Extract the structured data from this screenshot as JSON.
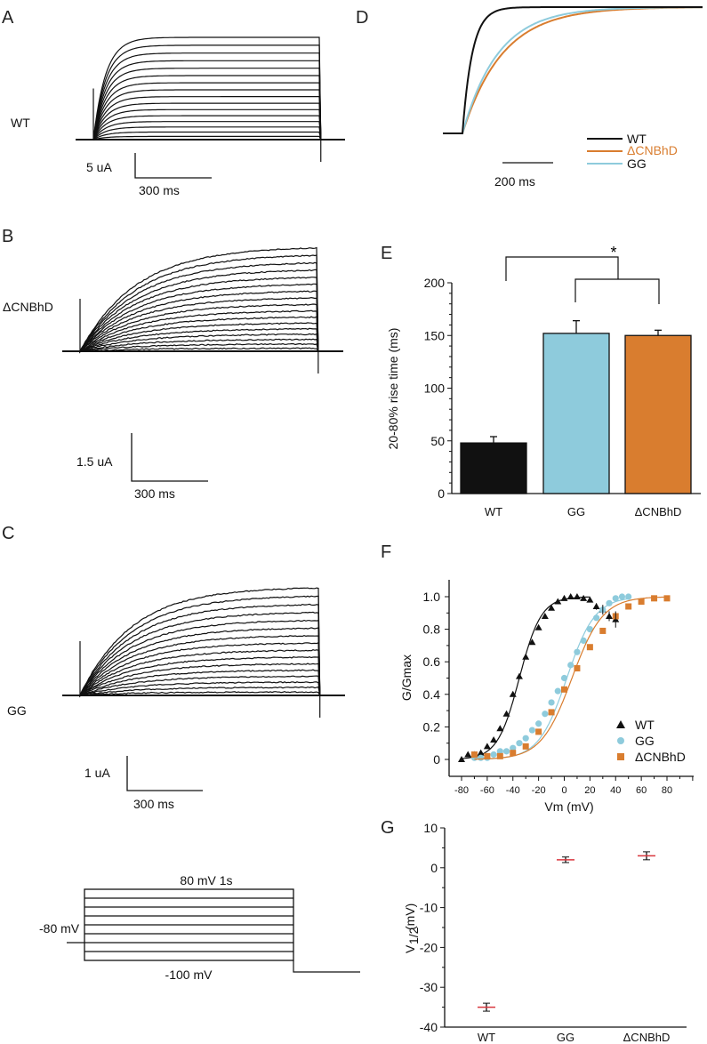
{
  "panels": {
    "A": {
      "letter": "A",
      "construct": "WT",
      "scale_current": "5 uA",
      "scale_time": "300 ms"
    },
    "B": {
      "letter": "B",
      "construct": "ΔCNBhD",
      "scale_current": "1.5 uA",
      "scale_time": "300 ms"
    },
    "C": {
      "letter": "C",
      "construct": "GG",
      "scale_current": "1 uA",
      "scale_time": "300 ms"
    },
    "protocol": {
      "top_label": "80 mV 1s",
      "holding_label": "-80 mV",
      "bottom_label": "-100 mV"
    },
    "D": {
      "letter": "D",
      "scale_time": "200 ms",
      "legend": [
        "WT",
        "ΔCNBhD",
        "GG"
      ]
    },
    "E": {
      "letter": "E"
    },
    "F": {
      "letter": "F"
    },
    "G": {
      "letter": "G"
    }
  },
  "colors": {
    "WT": "#111111",
    "GG": "#8ecbdc",
    "dCNBhD": "#d97d2f",
    "mean_line": "#d9363e"
  },
  "chart_data": [
    {
      "panel": "E",
      "type": "bar",
      "categories": [
        "WT",
        "GG",
        "ΔCNBhD"
      ],
      "values": [
        48,
        152,
        150
      ],
      "errors": [
        6,
        12,
        5
      ],
      "ylabel": "20-80% rise time (ms)",
      "ylim": [
        0,
        200
      ],
      "yticks": [
        "0",
        "50",
        "100",
        "150",
        "200"
      ],
      "significance": "*"
    },
    {
      "panel": "F",
      "type": "scatter",
      "xlabel": "Vm (mV)",
      "ylabel": "G/Gmax",
      "xlim": [
        -90,
        100
      ],
      "ylim": [
        0,
        1.1
      ],
      "xticks": [
        "-80",
        "-60",
        "-40",
        "-20",
        "0",
        "20",
        "40",
        "60",
        "80"
      ],
      "yticks": [
        "0",
        "0.2",
        "0.4",
        "0.6",
        "0.8",
        "1.0"
      ],
      "legend_position": "bottom-right",
      "series": [
        {
          "name": "WT",
          "marker": "triangle",
          "x": [
            -80,
            -75,
            -70,
            -65,
            -60,
            -55,
            -50,
            -45,
            -40,
            -35,
            -30,
            -25,
            -20,
            -15,
            -10,
            -5,
            0,
            5,
            10,
            15,
            20,
            25,
            30,
            35,
            40
          ],
          "y": [
            0,
            0.03,
            0.03,
            0.04,
            0.08,
            0.12,
            0.19,
            0.28,
            0.4,
            0.51,
            0.63,
            0.72,
            0.81,
            0.88,
            0.93,
            0.97,
            0.99,
            1.0,
            1.0,
            0.99,
            0.98,
            0.94,
            0.92,
            0.88,
            0.86
          ]
        },
        {
          "name": "GG",
          "marker": "circle",
          "x": [
            -70,
            -65,
            -60,
            -55,
            -50,
            -45,
            -40,
            -35,
            -30,
            -25,
            -20,
            -15,
            -10,
            -5,
            0,
            5,
            10,
            15,
            20,
            25,
            30,
            35,
            40,
            45,
            50
          ],
          "y": [
            0.01,
            0.01,
            0.01,
            0.03,
            0.05,
            0.05,
            0.07,
            0.1,
            0.13,
            0.18,
            0.22,
            0.28,
            0.35,
            0.42,
            0.5,
            0.58,
            0.66,
            0.73,
            0.8,
            0.87,
            0.92,
            0.96,
            0.99,
            1.0,
            1.0
          ]
        },
        {
          "name": "ΔCNBhD",
          "marker": "square",
          "x": [
            -70,
            -60,
            -50,
            -40,
            -30,
            -20,
            -10,
            0,
            10,
            20,
            30,
            40,
            50,
            60,
            70,
            80
          ],
          "y": [
            0.03,
            0.02,
            0.02,
            0.04,
            0.08,
            0.17,
            0.29,
            0.43,
            0.56,
            0.69,
            0.79,
            0.88,
            0.94,
            0.97,
            0.99,
            0.99
          ]
        }
      ]
    },
    {
      "panel": "G",
      "type": "scatter",
      "categories": [
        "WT",
        "GG",
        "ΔCNBhD"
      ],
      "values": [
        -35,
        2,
        3
      ],
      "errors": [
        1,
        0.7,
        1
      ],
      "ylabel_main": "V",
      "ylabel_sub": "1/2",
      "ylabel_unit": "(mV)",
      "ylim": [
        -40,
        10
      ],
      "yticks": [
        "10",
        "0",
        "-10",
        "-20",
        "-30",
        "-40"
      ]
    }
  ]
}
